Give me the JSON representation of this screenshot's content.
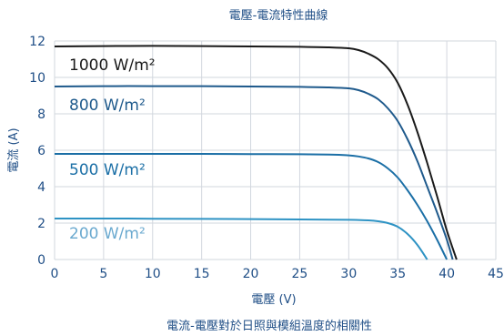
{
  "chart_data": {
    "type": "line",
    "title": "電壓-電流特性曲線",
    "xlabel": "電壓 (V)",
    "ylabel": "電流 (A)",
    "caption": "電流-電壓對於日照與模組溫度的相關性",
    "xlim": [
      0,
      45
    ],
    "ylim": [
      0,
      12
    ],
    "xticks": [
      "0",
      "5",
      "10",
      "15",
      "20",
      "25",
      "30",
      "35",
      "40",
      "45"
    ],
    "yticks": [
      "0",
      "2",
      "4",
      "6",
      "8",
      "10",
      "12"
    ],
    "grid": true,
    "series": [
      {
        "name": "1000 W/m²",
        "color": "#1a1a1a",
        "x": [
          0,
          5,
          10,
          15,
          20,
          25,
          28,
          30,
          31,
          32,
          33,
          34,
          35,
          36,
          37,
          38,
          39,
          40,
          41
        ],
        "y": [
          11.7,
          11.72,
          11.73,
          11.72,
          11.7,
          11.68,
          11.65,
          11.6,
          11.5,
          11.3,
          11.0,
          10.5,
          9.7,
          8.5,
          7.0,
          5.3,
          3.5,
          1.6,
          0
        ]
      },
      {
        "name": "800 W/m²",
        "color": "#1f5a8c",
        "x": [
          0,
          5,
          10,
          15,
          20,
          25,
          28,
          30,
          31,
          32,
          33,
          34,
          35,
          36,
          37,
          38,
          39,
          40,
          40.6
        ],
        "y": [
          9.5,
          9.52,
          9.52,
          9.52,
          9.5,
          9.48,
          9.45,
          9.4,
          9.3,
          9.1,
          8.8,
          8.3,
          7.6,
          6.6,
          5.4,
          4.0,
          2.6,
          1.1,
          0
        ]
      },
      {
        "name": "500 W/m²",
        "color": "#1b6fa6",
        "x": [
          0,
          5,
          10,
          15,
          20,
          25,
          28,
          30,
          31,
          32,
          33,
          34,
          35,
          36,
          37,
          38,
          39,
          40
        ],
        "y": [
          5.8,
          5.8,
          5.8,
          5.8,
          5.79,
          5.78,
          5.76,
          5.72,
          5.66,
          5.55,
          5.35,
          5.0,
          4.5,
          3.8,
          3.0,
          2.1,
          1.1,
          0
        ]
      },
      {
        "name": "200 W/m²",
        "color": "#2e93c4",
        "x": [
          0,
          5,
          10,
          15,
          20,
          25,
          28,
          30,
          31,
          32,
          33,
          34,
          35,
          36,
          37,
          38
        ],
        "y": [
          2.25,
          2.25,
          2.24,
          2.23,
          2.22,
          2.2,
          2.19,
          2.18,
          2.17,
          2.15,
          2.1,
          2.0,
          1.8,
          1.4,
          0.8,
          0
        ]
      }
    ],
    "series_labels": [
      "1000 W/m²",
      "800 W/m²",
      "500 W/m²",
      "200 W/m²"
    ]
  }
}
